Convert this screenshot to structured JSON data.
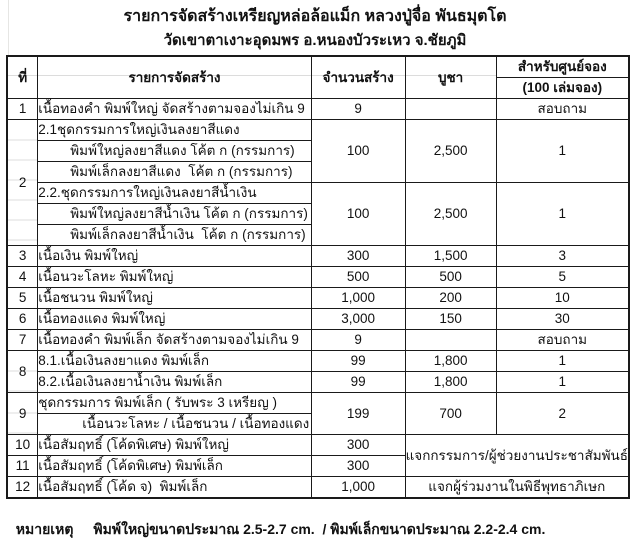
{
  "title": {
    "line1": "รายการจัดสร้างเหรียญหล่อล้อแม็ก หลวงปู่จื่อ พันธมุตโต",
    "line2": "วัดเขาตาเงาะอุดมพร อ.หนองบัวระเหว จ.ชัยภูมิ"
  },
  "table": {
    "headers": {
      "no": "ที่",
      "item": "รายการจัดสร้าง",
      "qty": "จำนวนสร้าง",
      "price": "บูชา",
      "center_line1": "สำหรับศูนย์จอง",
      "center_line2": "(100 เล่มจอง)"
    },
    "rows": {
      "r1": {
        "no": "1",
        "item": "เนื้อทองคำ พิมพ์ใหญ่ จัดสร้างตามจองไม่เกิน 9",
        "qty": "9",
        "price": "",
        "center": "สอบถาม"
      },
      "r2a": {
        "no": "2",
        "item": "2.1ชุดกรรมการใหญ่เงินลงยาสีแดง",
        "qty": "100",
        "price": "2,500",
        "center": "1"
      },
      "r2b": {
        "item": "พิมพ์ใหญ่ลงยาสีแดง โค้ต ก (กรรมการ)"
      },
      "r2c": {
        "item": "พิมพ์เล็กลงยาสีแดง  โค้ต ก (กรรมการ)"
      },
      "r2d": {
        "item": "2.2.ชุดกรรมการใหญ่เงินลงยาสีน้ำเงิน",
        "qty": "100",
        "price": "2,500",
        "center": "1"
      },
      "r2e": {
        "item": "พิมพ์ใหญ่ลงยาสีน้ำเงิน โค้ต ก (กรรมการ)"
      },
      "r2f": {
        "item": "พิมพ์เล็กลงยาสีน้ำเงิน  โค้ต ก (กรรมการ)"
      },
      "r3": {
        "no": "3",
        "item": "เนื้อเงิน พิมพ์ใหญ่",
        "qty": "300",
        "price": "1,500",
        "center": "3"
      },
      "r4": {
        "no": "4",
        "item": "เนื้อนวะโลหะ พิมพ์ใหญ่",
        "qty": "500",
        "price": "500",
        "center": "5"
      },
      "r5": {
        "no": "5",
        "item": "เนื้อชนวน พิมพ์ใหญ่",
        "qty": "1,000",
        "price": "200",
        "center": "10"
      },
      "r6": {
        "no": "6",
        "item": "เนื้อทองแดง พิมพ์ใหญ่",
        "qty": "3,000",
        "price": "150",
        "center": "30"
      },
      "r7": {
        "no": "7",
        "item": "เนื้อทองคำ พิมพ์เล็ก จัดสร้างตามจองไม่เกิน 9",
        "qty": "9",
        "price": "",
        "center": "สอบถาม"
      },
      "r8a": {
        "no": "8",
        "item": "8.1.เนื้อเงินลงยาแดง พิมพ์เล็ก",
        "qty": "99",
        "price": "1,800",
        "center": "1"
      },
      "r8b": {
        "item": "8.2.เนื้อเงินลงยาน้ำเงิน พิมพ์เล็ก",
        "qty": "99",
        "price": "1,800",
        "center": "1"
      },
      "r9a": {
        "no": "9",
        "item": "ชุดกรรมการ พิมพ์เล็ก ( รับพระ 3 เหรียญ )",
        "qty": "199",
        "price": "700",
        "center": "2"
      },
      "r9b": {
        "item": "เนื้อนวะโลหะ / เนื้อชนวน / เนื้อทองแดง"
      },
      "r10": {
        "no": "10",
        "item": "เนื้อสัมฤทธิ์ (โค้ดพิเศษ) พิมพ์ใหญ่",
        "qty": "300",
        "merged_note": "แจกกรรมการ/ผู้ช่วยงานประชาสัมพันธ์"
      },
      "r11": {
        "no": "11",
        "item": "เนื้อสัมฤทธิ์ (โค้ดพิเศษ) พิมพ์เล็ก",
        "qty": "300"
      },
      "r12": {
        "no": "12",
        "item": "เนื้อสัมฤทธิ์ (โค้ด จ)  พิมพ์เล็ก",
        "qty": "1,000",
        "merged_note": "แจกผู้ร่วมงานในพิธีพุทธาภิเษก"
      }
    }
  },
  "note": {
    "label": "หมายเหตุ",
    "text": "พิมพ์ใหญ่ขนาดประมาณ 2.5-2.7 cm.  / พิมพ์เล็กขนาดประมาณ 2.2-2.4 cm."
  },
  "colors": {
    "border": "#1a1a1a",
    "ghost_gridline": "#dcdcdc",
    "text": "#111111",
    "background": "#ffffff"
  }
}
